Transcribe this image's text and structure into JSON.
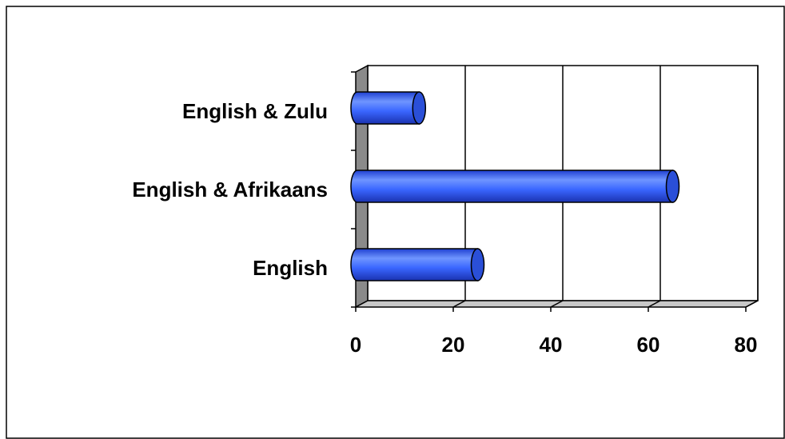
{
  "chart_data": {
    "type": "bar3d_horizontal",
    "categories": [
      "English",
      "English & Afrikaans",
      "English & Zulu"
    ],
    "values": [
      25,
      65,
      13
    ],
    "color": "#3a66ff",
    "xlim": [
      0,
      80
    ],
    "xticks": [
      0,
      20,
      40,
      60,
      80
    ],
    "grid": true
  }
}
